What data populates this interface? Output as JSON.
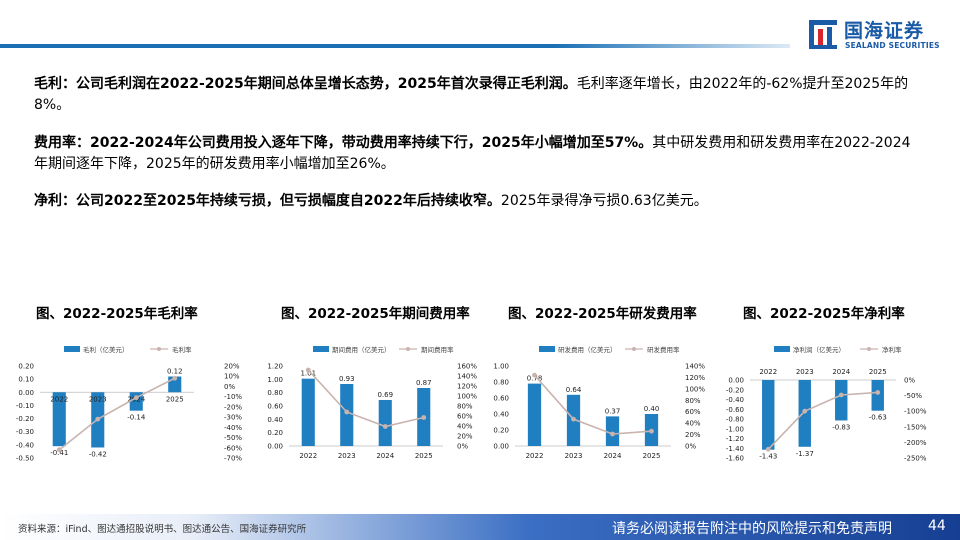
{
  "header": {
    "logo_cn": "国海证券",
    "logo_en": "SEALAND SECURITIES"
  },
  "paragraphs": {
    "p1": {
      "bold": "毛利：公司毛利润在2022-2025年期间总体呈增长态势，2025年首次录得正毛利润。",
      "normal": "毛利率逐年增长，由2022年的-62%提升至2025年的8%。"
    },
    "p2": {
      "bold": "费用率：2022-2024年公司费用投入逐年下降，带动费用率持续下行，2025年小幅增加至57%。",
      "normal": "其中研发费用和研发费用率在2022-2024年期间逐年下降，2025年的研发费用率小幅增加至26%。"
    },
    "p3": {
      "bold": "净利：公司2022至2025年持续亏损，但亏损幅度自2022年后持续收窄。",
      "normal": "2025年录得净亏损0.63亿美元。"
    }
  },
  "charts": {
    "c1": {
      "title": "图、2022-2025年毛利率"
    },
    "c2": {
      "title": "图、2022-2025年期间费用率"
    },
    "c3": {
      "title": "图、2022-2025年研发费用率"
    },
    "c4": {
      "title": "图、2022-2025年净利率"
    }
  },
  "colors": {
    "bar": "#1f7fc1",
    "line": "#c9b3ae",
    "brand": "#1a5aa6"
  },
  "chart_data": [
    {
      "type": "bar",
      "title": "图、2022-2025年毛利率",
      "categories": [
        "2022",
        "2023",
        "2024",
        "2025"
      ],
      "series": [
        {
          "name": "毛利（亿美元）",
          "type": "bar",
          "values": [
            -0.41,
            -0.42,
            -0.14,
            0.12
          ],
          "axis": "left"
        },
        {
          "name": "毛利率",
          "type": "line",
          "values": [
            -62,
            -32,
            -11,
            8
          ],
          "axis": "right"
        }
      ],
      "left_ticks": [
        "0.20",
        "0.10",
        "0.00",
        "-0.10",
        "-0.20",
        "-0.30",
        "-0.40",
        "-0.50"
      ],
      "right_ticks": [
        "20%",
        "10%",
        "0%",
        "-10%",
        "-20%",
        "-30%",
        "-40%",
        "-50%",
        "-60%",
        "-70%"
      ],
      "ylim": [
        -0.5,
        0.2
      ],
      "y2lim": [
        -70,
        20
      ],
      "data_labels": [
        "-0.41",
        "-0.42",
        "-0.14",
        "0.12"
      ],
      "xaxis_at_zero": true,
      "legend": "top"
    },
    {
      "type": "bar",
      "title": "图、2022-2025年期间费用率",
      "categories": [
        "2022",
        "2023",
        "2024",
        "2025"
      ],
      "series": [
        {
          "name": "期间费用（亿美元）",
          "type": "bar",
          "values": [
            1.01,
            0.93,
            0.69,
            0.87
          ],
          "axis": "left"
        },
        {
          "name": "期间费用率",
          "type": "line",
          "values": [
            152,
            68,
            39,
            57
          ],
          "axis": "right"
        }
      ],
      "left_ticks": [
        "1.20",
        "1.00",
        "0.80",
        "0.60",
        "0.40",
        "0.20",
        "0.00"
      ],
      "right_ticks": [
        "160%",
        "140%",
        "120%",
        "100%",
        "80%",
        "60%",
        "40%",
        "20%",
        "0%"
      ],
      "ylim": [
        0,
        1.2
      ],
      "y2lim": [
        0,
        160
      ],
      "data_labels": [
        "1.01",
        "0.93",
        "0.69",
        "0.87"
      ],
      "legend": "top"
    },
    {
      "type": "bar",
      "title": "图、2022-2025年研发费用率",
      "categories": [
        "2022",
        "2023",
        "2024",
        "2025"
      ],
      "series": [
        {
          "name": "研发费用（亿美元）",
          "type": "bar",
          "values": [
            0.78,
            0.64,
            0.37,
            0.4
          ],
          "axis": "left"
        },
        {
          "name": "研发费用率",
          "type": "line",
          "values": [
            124,
            47,
            21,
            26
          ],
          "axis": "right"
        }
      ],
      "left_ticks": [
        "1.00",
        "0.80",
        "0.60",
        "0.40",
        "0.20",
        "0.00"
      ],
      "right_ticks": [
        "140%",
        "120%",
        "100%",
        "80%",
        "60%",
        "40%",
        "20%",
        "0%"
      ],
      "ylim": [
        0,
        1.0
      ],
      "y2lim": [
        0,
        140
      ],
      "data_labels": [
        "0.78",
        "0.64",
        "0.37",
        "0.40"
      ],
      "legend": "top"
    },
    {
      "type": "bar",
      "title": "图、2022-2025年净利率",
      "categories": [
        "2022",
        "2023",
        "2024",
        "2025"
      ],
      "series": [
        {
          "name": "净利润（亿美元）",
          "type": "bar",
          "values": [
            -1.43,
            -1.37,
            -0.83,
            -0.63
          ],
          "axis": "left"
        },
        {
          "name": "净利率",
          "type": "line",
          "values": [
            -222,
            -100,
            -48,
            -40
          ],
          "axis": "right"
        }
      ],
      "left_ticks": [
        "0.00",
        "-0.20",
        "-0.40",
        "-0.60",
        "-0.80",
        "-1.00",
        "-1.20",
        "-1.40",
        "-1.60"
      ],
      "right_ticks": [
        "0%",
        "-50%",
        "-100%",
        "-150%",
        "-200%",
        "-250%"
      ],
      "ylim": [
        -1.6,
        0
      ],
      "y2lim": [
        -250,
        0
      ],
      "data_labels": [
        "-1.43",
        "-1.37",
        "-0.83",
        "-0.63"
      ],
      "xaxis_at_top": true,
      "legend": "top"
    }
  ],
  "footer": {
    "source": "资料来源：iFind、图达通招股说明书、图达通公告、国海证券研究所",
    "disclaimer": "请务必阅读报告附注中的风险提示和免责声明",
    "page": "44"
  }
}
